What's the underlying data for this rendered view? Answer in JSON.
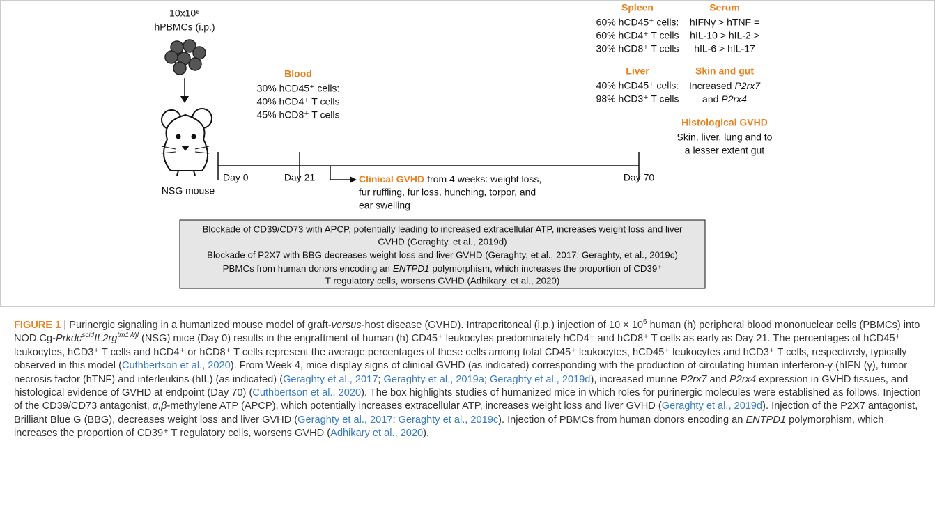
{
  "diagram": {
    "injection": {
      "dose": "10x10⁶",
      "cells": "hPBMCs (i.p.)"
    },
    "mouse": "NSG mouse",
    "days": [
      "Day 0",
      "Day 21",
      "Day 70"
    ],
    "blood": {
      "title": "Blood",
      "lines": [
        "30% hCD45⁺ cells:",
        "40% hCD4⁺ T cells",
        "45% hCD8⁺ T cells"
      ]
    },
    "clinical": {
      "title": "Clinical GVHD",
      "lines": [
        "from 4 weeks: weight loss,",
        "fur ruffling, fur loss, hunching, torpor, and",
        "ear swelling"
      ]
    },
    "spleen": {
      "title": "Spleen",
      "lines": [
        "60% hCD45⁺ cells:",
        "60% hCD4⁺ T cells",
        "30% hCD8⁺ T cells"
      ]
    },
    "liver": {
      "title": "Liver",
      "lines": [
        "40% hCD45⁺ cells:",
        "98% hCD3⁺ T cells"
      ]
    },
    "serum": {
      "title": "Serum",
      "lines": [
        "hIFNγ > hTNF =",
        "hIL-10 > hIL-2 >",
        "hIL-6 > hIL-17"
      ]
    },
    "skin_gut": {
      "title": "Skin and gut",
      "lines": [
        [
          "Increased",
          "P2rx7"
        ],
        [
          "and",
          "P2rx4"
        ]
      ]
    },
    "histological": {
      "title": "Histological GVHD",
      "lines": [
        "Skin, liver, lung and to",
        "a lesser extent gut"
      ]
    },
    "box": {
      "lines": [
        "Blockade of CD39/CD73 with APCP, potentially leading to increased extracellular ATP, increases weight loss and liver",
        "GVHD (Geraghty, et al., 2019d)",
        "Blockade of P2X7 with BBG decreases weight loss and liver GVHD (Geraghty, et al., 2017; Geraghty, et al., 2019c)",
        [
          "PBMCs from human donors encoding an",
          "ENTPD1",
          "polymorphism, which increases the proportion of CD39⁺"
        ],
        "T regulatory cells, worsens GVHD (Adhikary, et al., 2020)"
      ]
    }
  },
  "caption": {
    "label": "FIGURE 1",
    "runs": [
      " | Purinergic signaling in a humanized mouse model of graft-",
      "versus",
      "-host disease (GVHD). Intraperitoneal (i.p.) injection of 10 × 10",
      "6",
      " human (h) peripheral blood mononuclear cells (PBMCs) into NOD.Cg-",
      "Prkdc",
      "scid",
      "IL2rg",
      "tm1Wjl",
      " (NSG) mice (Day 0) results in the engraftment of human (h) CD45⁺ leukocytes predominately hCD4⁺ and hCD8⁺ T cells as early as Day 21. The percentages of hCD45⁺ leukocytes, hCD3⁺ T cells and hCD4⁺ or hCD8⁺ T cells represent the average percentages of these cells among total CD45⁺ leukocytes, hCD45⁺ leukocytes and hCD3⁺ T cells, respectively, typically observed in this model (",
      "Cuthbertson et al., 2020",
      "). From Week 4, mice display signs of clinical GVHD (as indicated) corresponding with the production of circulating human interferon-γ (hIFN (γ), tumor necrosis factor (hTNF) and interleukins (hIL) (as indicated) (",
      "Geraghty et al., 2017",
      "; ",
      "Geraghty et al., 2019a",
      "; ",
      "Geraghty et al., 2019d",
      "), increased murine ",
      "P2rx7",
      " and ",
      "P2rx4",
      " expression in GVHD tissues, and histological evidence of GVHD at endpoint (Day 70) (",
      "Cuthbertson et al., 2020",
      "). The box highlights studies of humanized mice in which roles for purinergic molecules were established as follows. Injection of the CD39/CD73 antagonist, ",
      "α,β",
      "-methylene ATP (APCP), which potentially increases extracellular ATP, increases weight loss and liver GVHD (",
      "Geraghty et al., 2019d",
      "). Injection of the P2X7 antagonist, Brilliant Blue G (BBG), decreases weight loss and liver GVHD (",
      "Geraghty et al., 2017",
      "; ",
      "Geraghty et al., 2019c",
      "). Injection of PBMCs from human donors encoding an ",
      "ENTPD1",
      " polymorphism, which increases the proportion of CD39⁺ T regulatory cells, worsens GVHD (",
      "Adhikary et al., 2020",
      ")."
    ]
  }
}
